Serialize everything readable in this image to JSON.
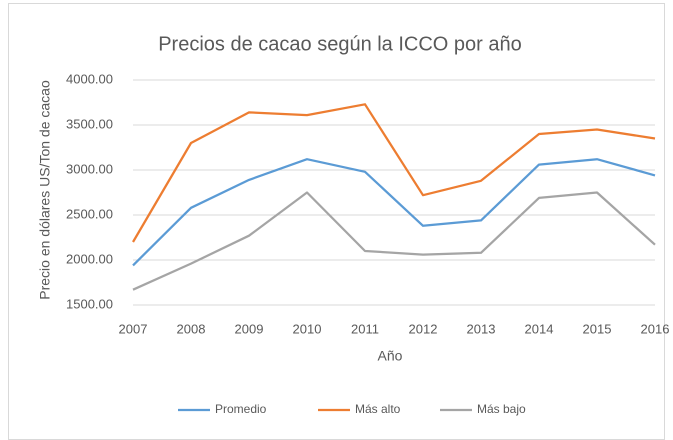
{
  "chart_data": {
    "type": "line",
    "title": "Precios de cacao según la ICCO por año",
    "x_label": "Año",
    "y_label": "Precio en dólares US/Ton de cacao",
    "categories": [
      "2007",
      "2008",
      "2009",
      "2010",
      "2011",
      "2012",
      "2013",
      "2014",
      "2015",
      "2016"
    ],
    "series": [
      {
        "name": "Promedio",
        "color": "#5b9bd5",
        "values": [
          1940,
          2580,
          2890,
          3120,
          2980,
          2380,
          2440,
          3060,
          3120,
          2940
        ]
      },
      {
        "name": "Más alto",
        "color": "#ed7d31",
        "values": [
          2200,
          3300,
          3640,
          3610,
          3730,
          2720,
          2880,
          3400,
          3450,
          3350
        ]
      },
      {
        "name": "Más bajo",
        "color": "#a5a5a5",
        "values": [
          1670,
          1960,
          2270,
          2750,
          2100,
          2060,
          2080,
          2690,
          2750,
          2170
        ]
      }
    ],
    "ylim": [
      1500,
      4000
    ],
    "yticks": [
      {
        "value": 1500,
        "label": "1500.00"
      },
      {
        "value": 2000,
        "label": "2000.00"
      },
      {
        "value": 2500,
        "label": "2500.00"
      },
      {
        "value": 3000,
        "label": "3000.00"
      },
      {
        "value": 3500,
        "label": "3500.00"
      },
      {
        "value": 4000,
        "label": "4000.00"
      }
    ],
    "grid": true,
    "legend": "bottom"
  }
}
